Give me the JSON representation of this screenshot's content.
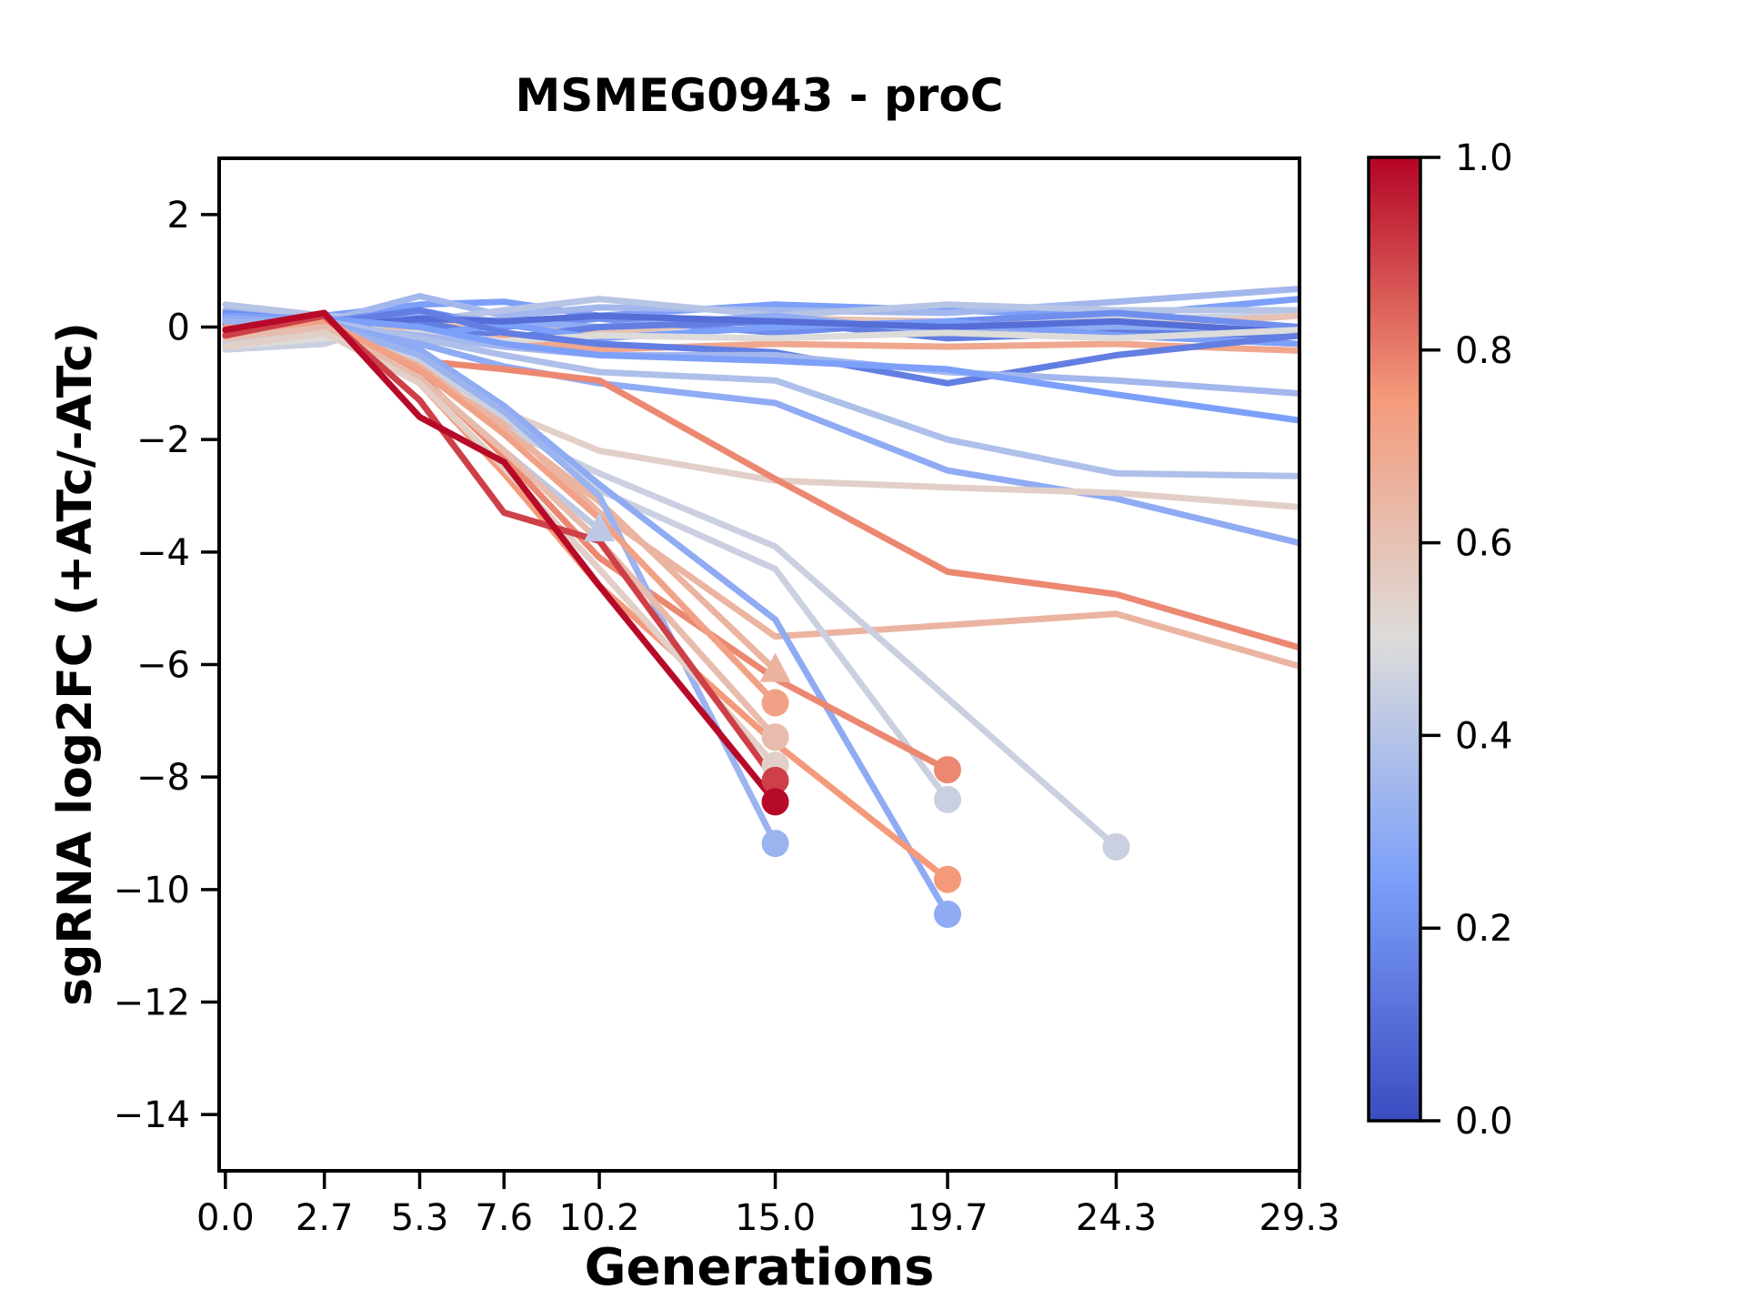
{
  "title": "MSMEG0943 - proC",
  "x_axis": {
    "label": "Generations"
  },
  "y_axis": {
    "label": "sgRNA log2FC (+ATc/-ATc)"
  },
  "chart_data": {
    "type": "line",
    "title": "MSMEG0943 - proC",
    "xlabel": "Generations",
    "ylabel": "sgRNA log2FC (+ATc/-ATc)",
    "x": [
      0.0,
      2.7,
      5.3,
      7.6,
      10.2,
      15.0,
      19.7,
      24.3,
      29.3
    ],
    "x_tick_labels": [
      "0.0",
      "2.7",
      "5.3",
      "7.6",
      "10.2",
      "15.0",
      "19.7",
      "24.3",
      "29.3"
    ],
    "y_tick_values": [
      2,
      0,
      -2,
      -4,
      -6,
      -8,
      -10,
      -12,
      -14
    ],
    "y_tick_labels": [
      "2",
      "0",
      "−2",
      "−4",
      "−6",
      "−8",
      "−10",
      "−12",
      "−14"
    ],
    "xlim": [
      -0.17,
      29.3
    ],
    "ylim": [
      -15,
      3
    ],
    "grid": false,
    "legend": "none",
    "colormap": "coolwarm",
    "colormap_anchors": {
      "positions": [
        0.0,
        0.25,
        0.5,
        0.75,
        1.0
      ],
      "colors": [
        "#3B4CC0",
        "#7C9FF9",
        "#DDDCDA",
        "#F49A7B",
        "#B40426"
      ]
    },
    "colorbar": {
      "range": [
        0.0,
        1.0
      ],
      "tick_values": [
        1.0,
        0.8,
        0.6,
        0.4,
        0.2,
        0.0
      ],
      "tick_labels": [
        "1.0",
        "0.8",
        "0.6",
        "0.4",
        "0.2",
        "0.0"
      ]
    },
    "series": [
      {
        "c": 0.25,
        "y": [
          0.15,
          0.2,
          0.4,
          0.45,
          0.2,
          0.4,
          0.3,
          0.2,
          0.5
        ]
      },
      {
        "c": 0.35,
        "y": [
          0.3,
          0.1,
          0.55,
          0.2,
          0.35,
          0.3,
          0.25,
          0.45,
          0.68
        ]
      },
      {
        "c": 0.4,
        "y": [
          0.4,
          0.2,
          0.1,
          0.3,
          0.5,
          0.2,
          0.4,
          0.3,
          0.3
        ]
      },
      {
        "c": 0.45,
        "y": [
          -0.4,
          -0.3,
          0.25,
          0.0,
          0.2,
          0.1,
          0.0,
          0.15,
          0.2
        ]
      },
      {
        "c": 0.6,
        "y": [
          -0.25,
          -0.15,
          0.0,
          0.1,
          -0.1,
          0.15,
          0.1,
          0.0,
          0.2
        ]
      },
      {
        "c": 0.2,
        "y": [
          0.25,
          0.1,
          0.3,
          0.0,
          0.15,
          -0.1,
          0.1,
          0.25,
          0.0
        ]
      },
      {
        "c": 0.3,
        "y": [
          0.1,
          0.0,
          0.2,
          0.1,
          0.0,
          0.2,
          -0.1,
          0.0,
          -0.1
        ]
      },
      {
        "c": 0.15,
        "y": [
          0.0,
          0.05,
          0.1,
          -0.2,
          0.0,
          0.1,
          -0.2,
          -0.1,
          -0.15
        ]
      },
      {
        "c": 0.25,
        "y": [
          -0.1,
          -0.05,
          -0.15,
          0.05,
          -0.2,
          0.0,
          0.1,
          -0.15,
          -0.3
        ]
      },
      {
        "c": 0.7,
        "y": [
          -0.15,
          -0.1,
          -0.3,
          -0.2,
          -0.4,
          -0.3,
          -0.35,
          -0.3,
          -0.42
        ]
      },
      {
        "c": 0.1,
        "y": [
          0.05,
          0.0,
          0.15,
          0.1,
          0.2,
          0.1,
          0.0,
          0.1,
          -0.1
        ]
      },
      {
        "c": 0.5,
        "y": [
          -0.35,
          -0.2,
          -0.1,
          -0.25,
          -0.15,
          -0.2,
          -0.1,
          -0.2,
          -0.05
        ]
      },
      {
        "c": 0.15,
        "y": [
          0.1,
          0.05,
          0.3,
          -0.1,
          -0.3,
          -0.45,
          -1.0,
          -0.5,
          -0.15
        ]
      },
      {
        "c": 0.35,
        "y": [
          0.1,
          0.0,
          -0.15,
          -0.35,
          -0.5,
          -0.5,
          -0.8,
          -0.95,
          -1.18
        ]
      },
      {
        "c": 0.25,
        "y": [
          0.2,
          0.15,
          0.0,
          -0.3,
          -0.5,
          -0.6,
          -0.75,
          -1.2,
          -1.66
        ]
      },
      {
        "c": 0.38,
        "y": [
          0.0,
          0.1,
          -0.2,
          -0.5,
          -0.8,
          -0.95,
          -2.0,
          -2.6,
          -2.65
        ]
      },
      {
        "c": 0.3,
        "y": [
          0.1,
          0.05,
          -0.3,
          -0.7,
          -1.0,
          -1.35,
          -2.55,
          -3.05,
          -3.84
        ]
      },
      {
        "c": 0.55,
        "y": [
          -0.3,
          -0.05,
          -0.7,
          -1.5,
          -2.2,
          -2.73,
          -2.85,
          -2.95,
          -3.2
        ]
      },
      {
        "c": 0.78,
        "y": [
          -0.05,
          0.1,
          -0.6,
          -0.75,
          -0.95,
          -2.7,
          -4.35,
          -4.75,
          -5.7
        ]
      },
      {
        "c": 0.65,
        "y": [
          -0.1,
          0.0,
          -0.8,
          -1.7,
          -3.3,
          -5.5,
          -5.3,
          -5.1,
          -6.03
        ]
      },
      {
        "c": 0.42,
        "y": [
          -0.2,
          -0.1,
          -0.9,
          -2.2,
          -3.6
        ],
        "marker": "triangle"
      },
      {
        "c": 0.45,
        "y": [
          -0.25,
          0.0,
          -0.8,
          -1.8,
          -2.6,
          -3.9,
          -6.6,
          -9.24
        ],
        "marker": "circle"
      },
      {
        "c": 0.45,
        "y": [
          -0.3,
          -0.05,
          -0.6,
          -1.6,
          -2.9,
          -4.3,
          -8.4
        ],
        "marker": "circle"
      },
      {
        "c": 0.3,
        "y": [
          0.15,
          0.1,
          -0.4,
          -1.4,
          -2.8,
          -5.2,
          -10.44
        ],
        "marker": "circle"
      },
      {
        "c": 0.75,
        "y": [
          0.0,
          0.1,
          -1.0,
          -2.6,
          -4.6,
          -7.4,
          -9.82
        ],
        "marker": "circle"
      },
      {
        "c": 0.78,
        "y": [
          -0.1,
          0.15,
          -0.85,
          -2.3,
          -4.1,
          -6.25,
          -7.87
        ],
        "marker": "circle"
      },
      {
        "c": 0.65,
        "y": [
          -0.15,
          0.05,
          -0.7,
          -1.8,
          -3.1,
          -6.1
        ],
        "marker": "triangle"
      },
      {
        "c": 0.33,
        "y": [
          0.1,
          0.05,
          -0.5,
          -1.5,
          -3.0,
          -9.18
        ],
        "marker": "circle"
      },
      {
        "c": 0.72,
        "y": [
          -0.1,
          0.1,
          -0.75,
          -1.9,
          -3.4,
          -6.68
        ],
        "marker": "circle"
      },
      {
        "c": 0.62,
        "y": [
          -0.2,
          0.0,
          -0.9,
          -2.2,
          -3.8,
          -7.29
        ],
        "marker": "circle"
      },
      {
        "c": 0.55,
        "y": [
          -0.35,
          -0.1,
          -1.0,
          -2.5,
          -4.3,
          -7.79
        ],
        "marker": "circle"
      },
      {
        "c": 0.9,
        "y": [
          -0.15,
          0.2,
          -1.3,
          -3.3,
          -3.8,
          -8.06
        ],
        "marker": "circle"
      },
      {
        "c": 0.99,
        "y": [
          -0.05,
          0.25,
          -1.6,
          -2.4,
          -4.6,
          -8.44
        ],
        "marker": "circle"
      }
    ]
  }
}
